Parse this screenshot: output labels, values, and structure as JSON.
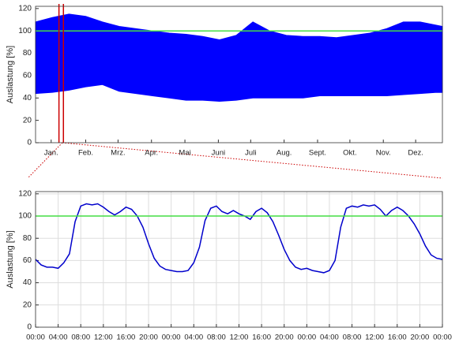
{
  "chart_data": [
    {
      "type": "area-range",
      "ylabel": "Auslastung [%]",
      "x": [
        0,
        15,
        30,
        45,
        60,
        75,
        90,
        105,
        120,
        135,
        150,
        165,
        180,
        195,
        210,
        225,
        240,
        255,
        270,
        285,
        300,
        315,
        330,
        345,
        360,
        365
      ],
      "series": [
        {
          "color": "#0000ff",
          "values": [
            108,
            112,
            115,
            113,
            108,
            104,
            102,
            100,
            98,
            97,
            95,
            92,
            96,
            108,
            100,
            96,
            95,
            95,
            94,
            96,
            98,
            102,
            108,
            108,
            105,
            104
          ]
        },
        {
          "color": "#0000ff",
          "values": [
            44,
            45,
            47,
            50,
            52,
            46,
            44,
            42,
            40,
            38,
            38,
            37,
            38,
            40,
            40,
            40,
            40,
            42,
            42,
            42,
            42,
            42,
            43,
            44,
            45,
            45
          ]
        }
      ],
      "xlim": [
        0,
        365
      ],
      "ylim": [
        0,
        122
      ],
      "yticks": [
        0,
        20,
        40,
        60,
        80,
        100,
        120
      ],
      "xticks": [
        {
          "value": 14,
          "label": "Jan."
        },
        {
          "value": 45,
          "label": "Feb."
        },
        {
          "value": 74,
          "label": "Mrz."
        },
        {
          "value": 104,
          "label": "Apr."
        },
        {
          "value": 134,
          "label": "Mai"
        },
        {
          "value": 164,
          "label": "Juni"
        },
        {
          "value": 193,
          "label": "Juli"
        },
        {
          "value": 223,
          "label": "Aug."
        },
        {
          "value": 253,
          "label": "Sept."
        },
        {
          "value": 282,
          "label": "Okt."
        },
        {
          "value": 312,
          "label": "Nov."
        },
        {
          "value": 341,
          "label": "Dez."
        }
      ],
      "hline": 100,
      "hline_color": "#44dd44",
      "markers_x": [
        21,
        25
      ],
      "marker_color": "#cc0000",
      "grid": false
    },
    {
      "type": "line",
      "ylabel": "Auslastung [%]",
      "x": [
        0,
        1,
        2,
        3,
        4,
        5,
        6,
        7,
        8,
        9,
        10,
        11,
        12,
        13,
        14,
        15,
        16,
        17,
        18,
        19,
        20,
        21,
        22,
        23,
        24,
        25,
        26,
        27,
        28,
        29,
        30,
        31,
        32,
        33,
        34,
        35,
        36,
        37,
        38,
        39,
        40,
        41,
        42,
        43,
        44,
        45,
        46,
        47,
        48,
        49,
        50,
        51,
        52,
        53,
        54,
        55,
        56,
        57,
        58,
        59,
        60,
        61,
        62,
        63,
        64,
        65,
        66,
        67,
        68,
        69,
        70,
        71,
        72
      ],
      "series": [
        {
          "color": "#0000cc",
          "values": [
            61,
            56,
            54,
            54,
            53,
            58,
            66,
            95,
            109,
            111,
            110,
            111,
            108,
            104,
            101,
            104,
            108,
            106,
            100,
            90,
            75,
            62,
            55,
            52,
            51,
            50,
            50,
            51,
            58,
            72,
            96,
            107,
            109,
            104,
            102,
            105,
            102,
            100,
            97,
            104,
            107,
            103,
            95,
            83,
            70,
            60,
            54,
            52,
            53,
            51,
            50,
            49,
            51,
            60,
            90,
            107,
            109,
            108,
            110,
            109,
            110,
            106,
            100,
            105,
            108,
            105,
            100,
            93,
            84,
            73,
            65,
            62,
            61
          ]
        }
      ],
      "xlim": [
        0,
        72
      ],
      "ylim": [
        0,
        122
      ],
      "yticks": [
        0,
        20,
        40,
        60,
        80,
        100,
        120
      ],
      "xticks": [
        {
          "value": 0,
          "label": "00:00"
        },
        {
          "value": 4,
          "label": "04:00"
        },
        {
          "value": 8,
          "label": "08:00"
        },
        {
          "value": 12,
          "label": "12:00"
        },
        {
          "value": 16,
          "label": "16:00"
        },
        {
          "value": 20,
          "label": "20:00"
        },
        {
          "value": 24,
          "label": "00:00"
        },
        {
          "value": 28,
          "label": "04:00"
        },
        {
          "value": 32,
          "label": "08:00"
        },
        {
          "value": 36,
          "label": "12:00"
        },
        {
          "value": 40,
          "label": "16:00"
        },
        {
          "value": 44,
          "label": "20:00"
        },
        {
          "value": 48,
          "label": "00:00"
        },
        {
          "value": 52,
          "label": "04:00"
        },
        {
          "value": 56,
          "label": "08:00"
        },
        {
          "value": 60,
          "label": "12:00"
        },
        {
          "value": 64,
          "label": "16:00"
        },
        {
          "value": 68,
          "label": "20:00"
        },
        {
          "value": 72,
          "label": "00:00"
        }
      ],
      "hline": 100,
      "hline_color": "#44dd44",
      "grid": true
    }
  ]
}
